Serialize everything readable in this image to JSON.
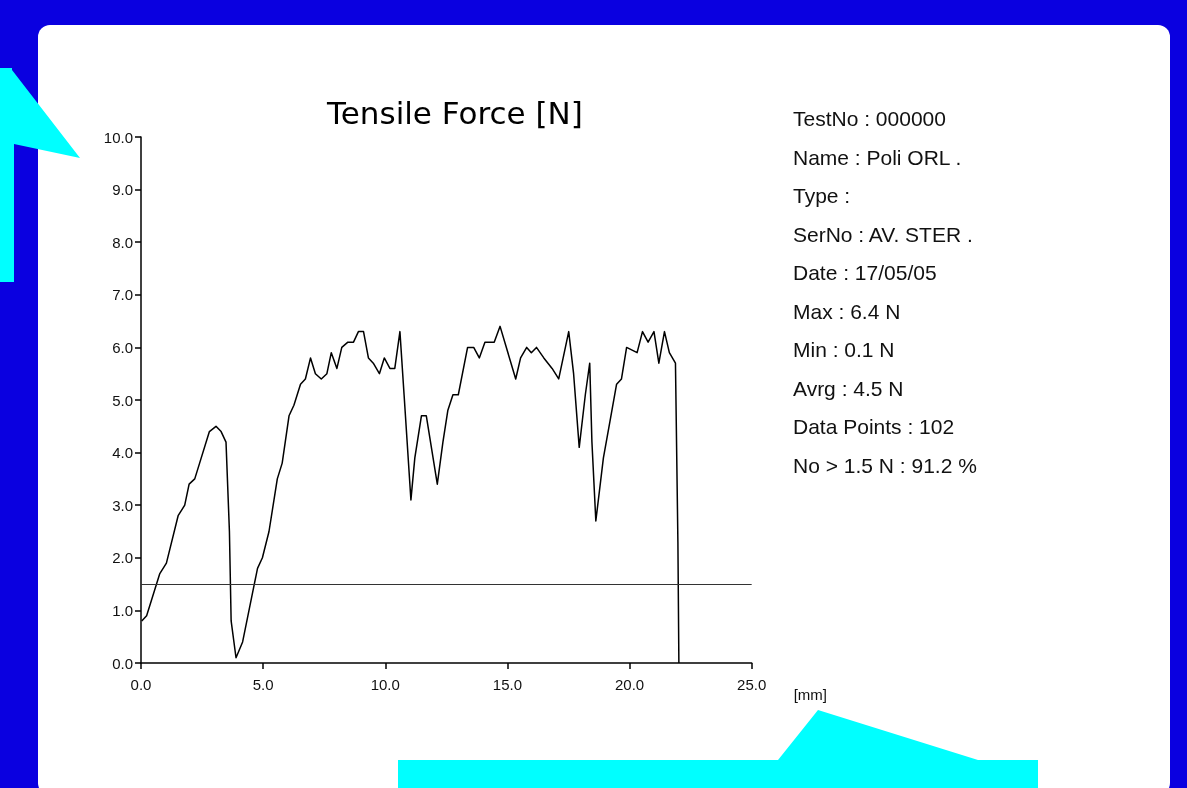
{
  "chart_data": [
    {
      "type": "line",
      "title": "Tensile Force [N]",
      "xlabel": "[mm]",
      "xlim": [
        0,
        25
      ],
      "xticks": [
        {
          "value": 0,
          "label": "0.0"
        },
        {
          "value": 5,
          "label": "5.0"
        },
        {
          "value": 10,
          "label": "10.0"
        },
        {
          "value": 15,
          "label": "15.0"
        },
        {
          "value": 20,
          "label": "20.0"
        },
        {
          "value": 25,
          "label": "25.0"
        }
      ],
      "ylim": [
        0,
        10
      ],
      "yticks": [
        {
          "value": 0,
          "label": "0.0"
        },
        {
          "value": 1,
          "label": "1.0"
        },
        {
          "value": 2,
          "label": "2.0"
        },
        {
          "value": 3,
          "label": "3.0"
        },
        {
          "value": 4,
          "label": "4.0"
        },
        {
          "value": 5,
          "label": "5.0"
        },
        {
          "value": 6,
          "label": "6.0"
        },
        {
          "value": 7,
          "label": "7.0"
        },
        {
          "value": 8,
          "label": "8.0"
        },
        {
          "value": 9,
          "label": "9.0"
        },
        {
          "value": 10,
          "label": "10.0"
        }
      ],
      "grid": false,
      "marker": "none",
      "line_style": "solid",
      "series": [
        {
          "color": "#000000",
          "x": [
            0.03,
            0.23,
            0.77,
            1.04,
            1.52,
            1.79,
            1.97,
            2.2,
            2.4,
            2.8,
            3.07,
            3.28,
            3.48,
            3.62,
            3.69,
            3.89,
            4.16,
            4.77,
            4.97,
            5.24,
            5.58,
            5.78,
            6.06,
            6.26,
            6.53,
            6.73,
            6.94,
            7.14,
            7.38,
            7.61,
            7.79,
            8.02,
            8.22,
            8.47,
            8.7,
            8.9,
            9.11,
            9.31,
            9.51,
            9.76,
            9.96,
            10.19,
            10.39,
            10.6,
            10.77,
            11.05,
            11.21,
            11.48,
            11.68,
            12.13,
            12.36,
            12.56,
            12.77,
            12.99,
            13.37,
            13.62,
            13.85,
            14.08,
            14.46,
            14.7,
            15.34,
            15.54,
            15.79,
            15.98,
            16.19,
            16.49,
            16.83,
            17.1,
            17.51,
            17.71,
            17.94,
            18.19,
            18.37,
            18.46,
            18.62,
            18.93,
            19.2,
            19.47,
            19.67,
            19.88,
            20.31,
            20.53,
            20.76,
            21.0,
            21.2,
            21.43,
            21.63,
            21.88,
            21.98,
            22.02
          ],
          "values": [
            0.8,
            0.9,
            1.7,
            1.9,
            2.8,
            3.0,
            3.4,
            3.5,
            3.8,
            4.4,
            4.5,
            4.4,
            4.2,
            2.5,
            0.8,
            0.1,
            0.4,
            1.8,
            2.0,
            2.5,
            3.5,
            3.8,
            4.7,
            4.9,
            5.3,
            5.4,
            5.8,
            5.5,
            5.4,
            5.5,
            5.9,
            5.6,
            6.0,
            6.1,
            6.1,
            6.3,
            6.3,
            5.8,
            5.7,
            5.5,
            5.8,
            5.6,
            5.6,
            6.3,
            5.1,
            3.1,
            3.9,
            4.7,
            4.7,
            3.4,
            4.2,
            4.8,
            5.1,
            5.1,
            6.0,
            6.0,
            5.8,
            6.1,
            6.1,
            6.4,
            5.4,
            5.8,
            6.0,
            5.9,
            6.0,
            5.8,
            5.6,
            5.4,
            6.3,
            5.5,
            4.1,
            5.1,
            5.7,
            4.2,
            2.7,
            3.9,
            4.6,
            5.3,
            5.4,
            6.0,
            5.9,
            6.3,
            6.1,
            6.3,
            5.7,
            6.3,
            5.9,
            5.7,
            2.3,
            0.0
          ]
        }
      ],
      "ref_lines": [
        {
          "axis": "y",
          "value": 1.5,
          "color": "#333333",
          "line_style": "solid"
        }
      ]
    },
    {
      "type": "other",
      "annotations": [
        "TestNo : 000000",
        "Name : Poli ORL .",
        "Type :",
        "SerNo : AV. STER .",
        "Date : 17/05/05",
        "Max : 6.4 N",
        "Min : 0.1 N",
        "Avrg : 4.5 N",
        "Data Points : 102",
        "No > 1.5 N : 91.2 %"
      ]
    }
  ]
}
